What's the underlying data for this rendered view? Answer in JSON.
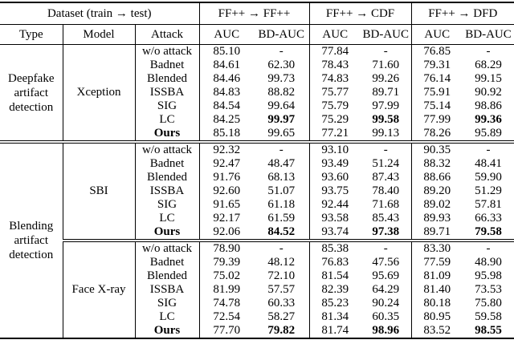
{
  "header": {
    "dataset_label": "Dataset (train → test)",
    "col_groups": [
      "FF++ → FF++",
      "FF++ → CDF",
      "FF++ → DFD"
    ],
    "sub": [
      "Type",
      "Model",
      "Attack",
      "AUC",
      "BD-AUC",
      "AUC",
      "BD-AUC",
      "AUC",
      "BD-AUC"
    ]
  },
  "type_groups": [
    {
      "label": "Deepfake artifact detection",
      "rowspan": 7
    },
    {
      "label": "Blending artifact detection",
      "rowspan": 14
    }
  ],
  "model_groups": [
    {
      "model": "Xception",
      "type_index": 0,
      "starts_type": true,
      "rows": [
        {
          "attack": "w/o attack",
          "values": [
            "85.10",
            "-",
            "77.84",
            "-",
            "76.85",
            "-"
          ]
        },
        {
          "attack": "Badnet",
          "values": [
            "84.61",
            "62.30",
            "78.43",
            "71.60",
            "79.31",
            "68.29"
          ]
        },
        {
          "attack": "Blended",
          "values": [
            "84.46",
            "99.73",
            "74.83",
            "99.26",
            "76.14",
            "99.15"
          ]
        },
        {
          "attack": "ISSBA",
          "values": [
            "84.83",
            "88.82",
            "75.77",
            "89.71",
            "75.91",
            "90.92"
          ]
        },
        {
          "attack": "SIG",
          "values": [
            "84.54",
            "99.64",
            "75.79",
            "97.99",
            "75.14",
            "98.86"
          ]
        },
        {
          "attack": "LC",
          "values": [
            "84.25",
            "99.97",
            "75.29",
            "99.58",
            "77.99",
            "99.36"
          ],
          "bold_values": [
            1,
            3,
            5
          ]
        },
        {
          "attack": "Ours",
          "bold_attack": true,
          "values": [
            "85.18",
            "99.65",
            "77.21",
            "99.13",
            "78.26",
            "95.89"
          ]
        }
      ]
    },
    {
      "model": "SBI",
      "type_index": 1,
      "starts_type": true,
      "rows": [
        {
          "attack": "w/o attack",
          "values": [
            "92.32",
            "-",
            "93.10",
            "-",
            "90.35",
            "-"
          ]
        },
        {
          "attack": "Badnet",
          "values": [
            "92.47",
            "48.47",
            "93.49",
            "51.24",
            "88.32",
            "48.41"
          ]
        },
        {
          "attack": "Blended",
          "values": [
            "91.76",
            "68.13",
            "93.60",
            "87.43",
            "88.66",
            "59.90"
          ]
        },
        {
          "attack": "ISSBA",
          "values": [
            "92.60",
            "51.07",
            "93.75",
            "78.40",
            "89.20",
            "51.29"
          ]
        },
        {
          "attack": "SIG",
          "values": [
            "91.65",
            "61.18",
            "92.44",
            "71.68",
            "89.02",
            "57.81"
          ]
        },
        {
          "attack": "LC",
          "values": [
            "92.17",
            "61.59",
            "93.58",
            "85.43",
            "89.93",
            "66.33"
          ]
        },
        {
          "attack": "Ours",
          "bold_attack": true,
          "values": [
            "92.06",
            "84.52",
            "93.74",
            "97.38",
            "89.71",
            "79.58"
          ],
          "bold_values": [
            1,
            3,
            5
          ]
        }
      ]
    },
    {
      "model": "Face X-ray",
      "type_index": 1,
      "starts_type": false,
      "rows": [
        {
          "attack": "w/o attack",
          "values": [
            "78.90",
            "-",
            "85.38",
            "-",
            "83.30",
            "-"
          ]
        },
        {
          "attack": "Badnet",
          "values": [
            "79.39",
            "48.12",
            "76.83",
            "47.56",
            "77.59",
            "48.90"
          ]
        },
        {
          "attack": "Blended",
          "values": [
            "75.02",
            "72.10",
            "81.54",
            "95.69",
            "81.09",
            "95.98"
          ]
        },
        {
          "attack": "ISSBA",
          "values": [
            "81.99",
            "57.57",
            "82.39",
            "64.29",
            "81.40",
            "73.53"
          ]
        },
        {
          "attack": "SIG",
          "values": [
            "74.78",
            "60.33",
            "85.23",
            "90.24",
            "80.18",
            "75.80"
          ]
        },
        {
          "attack": "LC",
          "values": [
            "72.54",
            "58.27",
            "81.34",
            "60.35",
            "80.95",
            "59.58"
          ]
        },
        {
          "attack": "Ours",
          "bold_attack": true,
          "values": [
            "77.70",
            "79.82",
            "81.74",
            "98.96",
            "83.52",
            "98.55"
          ],
          "bold_values": [
            1,
            3,
            5
          ]
        }
      ]
    }
  ],
  "colors": {
    "text": "#000000",
    "background": "#ffffff",
    "rule": "#000000"
  }
}
